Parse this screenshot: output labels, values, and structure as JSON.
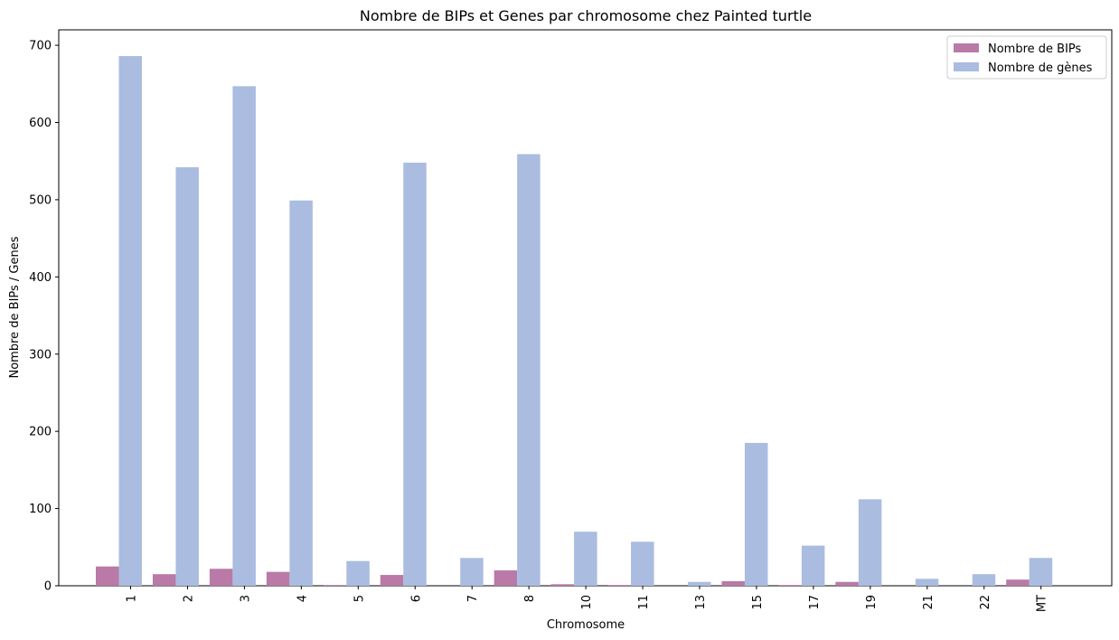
{
  "chart_data": {
    "type": "bar",
    "title": "Nombre de BIPs et Genes par chromosome chez Painted turtle",
    "xlabel": "Chromosome",
    "ylabel": "Nombre de BIPs / Genes",
    "ylim": [
      0,
      720
    ],
    "yticks": [
      0,
      100,
      200,
      300,
      400,
      500,
      600,
      700
    ],
    "grid": false,
    "legend_position": "top-right",
    "categories": [
      "1",
      "2",
      "3",
      "4",
      "5",
      "6",
      "7",
      "8",
      "10",
      "11",
      "13",
      "15",
      "17",
      "19",
      "21",
      "22",
      "MT"
    ],
    "series": [
      {
        "name": "Nombre de BIPs",
        "color": "#b97aa7",
        "values": [
          25,
          15,
          22,
          18,
          1,
          14,
          0,
          20,
          2,
          1,
          0,
          6,
          1,
          5,
          0,
          0,
          8
        ]
      },
      {
        "name": "Nombre de gènes",
        "color": "#aabce0",
        "values": [
          686,
          542,
          647,
          499,
          32,
          548,
          36,
          559,
          70,
          57,
          5,
          185,
          52,
          112,
          9,
          15,
          36
        ]
      }
    ]
  }
}
